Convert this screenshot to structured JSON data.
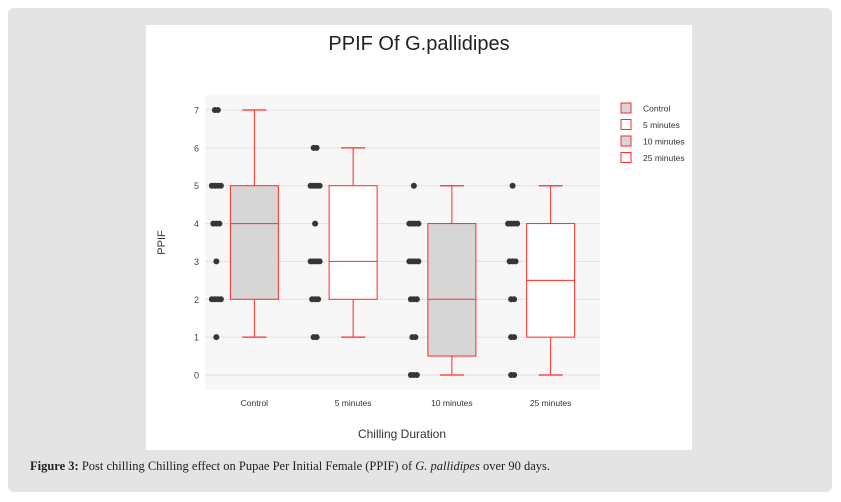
{
  "caption": {
    "label": "Figure 3:",
    "text": " Post chilling Chilling effect on Pupae Per Initial Female (PPIF) of ",
    "species": "G. pallidipes",
    "tail": " over 90 days."
  },
  "chart_data": {
    "type": "box",
    "title": "PPIF Of G.pallidipes",
    "xlabel": "Chilling Duration",
    "ylabel": "PPIF",
    "ylim": [
      0,
      7
    ],
    "yticks": [
      0,
      1,
      2,
      3,
      4,
      5,
      6,
      7
    ],
    "categories": [
      "Control",
      "5 minutes",
      "10 minutes",
      "25 minutes"
    ],
    "legend": {
      "position": "right",
      "entries": [
        "Control",
        "5 minutes",
        "10 minutes",
        "25 minutes"
      ]
    },
    "colors": {
      "stroke": "#ff2a2a",
      "fill_gray": "#d6d6d6",
      "fill_white": "#ffffff",
      "dot": "#3a3434",
      "plot_bg": "#f7f7f7",
      "grid": "#e2e2e6"
    },
    "series": [
      {
        "name": "Control",
        "fill": "gray",
        "min": 1,
        "q1": 2,
        "median": 4,
        "q3": 5,
        "max": 7,
        "points": [
          [
            7,
            2
          ],
          [
            5,
            4
          ],
          [
            4,
            3
          ],
          [
            3,
            1
          ],
          [
            2,
            4
          ],
          [
            1,
            1
          ]
        ]
      },
      {
        "name": "5 minutes",
        "fill": "white",
        "min": 1,
        "q1": 2,
        "median": 3,
        "q3": 5,
        "max": 6,
        "points": [
          [
            6,
            2
          ],
          [
            5,
            4
          ],
          [
            4,
            1
          ],
          [
            3,
            4
          ],
          [
            2,
            3
          ],
          [
            1,
            2
          ]
        ]
      },
      {
        "name": "10 minutes",
        "fill": "gray",
        "min": 0,
        "q1": 0.5,
        "median": 2,
        "q3": 4,
        "max": 5,
        "points": [
          [
            5,
            1
          ],
          [
            4,
            4
          ],
          [
            3,
            4
          ],
          [
            2,
            3
          ],
          [
            1,
            2
          ],
          [
            0,
            3
          ]
        ]
      },
      {
        "name": "25 minutes",
        "fill": "white",
        "min": 0,
        "q1": 1,
        "median": 2.5,
        "q3": 4,
        "max": 5,
        "points": [
          [
            5,
            1
          ],
          [
            4,
            4
          ],
          [
            3,
            3
          ],
          [
            2,
            2
          ],
          [
            1,
            2
          ],
          [
            0,
            2
          ]
        ]
      }
    ]
  }
}
